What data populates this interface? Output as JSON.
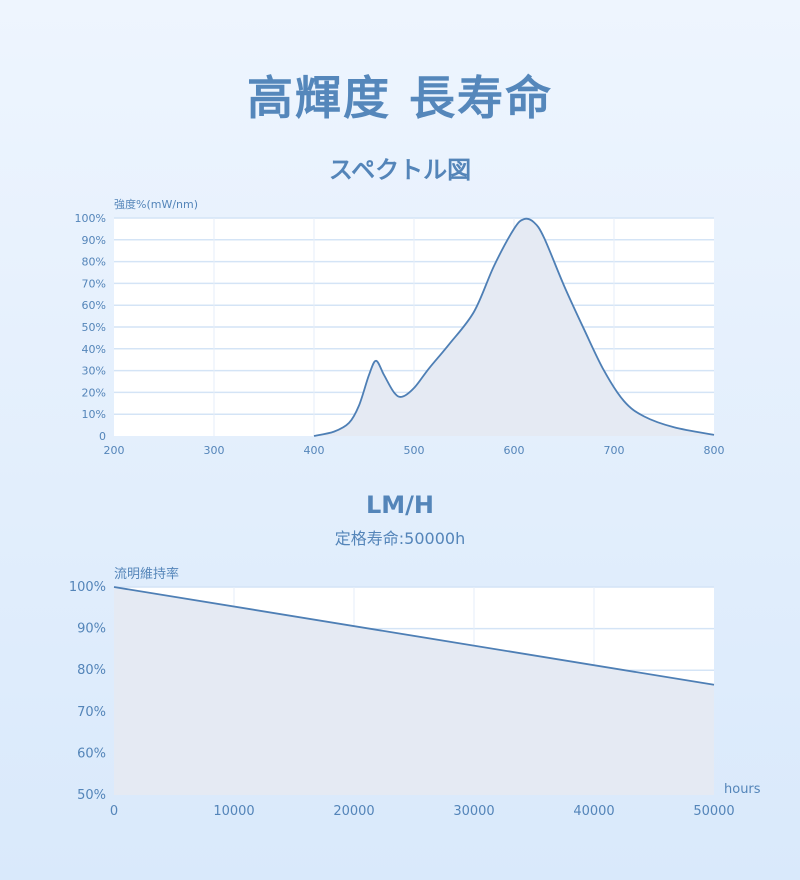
{
  "header": {
    "title": "高輝度 長寿命"
  },
  "chart_data": [
    {
      "type": "area",
      "title": "スペクトル図",
      "ylabel": "強度%(mW/nm)",
      "xlabel": "",
      "xlim": [
        200,
        800
      ],
      "ylim": [
        0,
        100
      ],
      "xticks": [
        "200",
        "300",
        "400",
        "500",
        "600",
        "700",
        "800"
      ],
      "yticks": [
        "0",
        "10%",
        "20%",
        "30%",
        "40%",
        "50%",
        "60%",
        "70%",
        "80%",
        "90%",
        "100%"
      ],
      "grid": true,
      "x": [
        400,
        420,
        435,
        445,
        455,
        462,
        470,
        480,
        488,
        500,
        515,
        535,
        560,
        580,
        600,
        610,
        620,
        630,
        650,
        670,
        690,
        710,
        730,
        760,
        800
      ],
      "y": [
        0,
        2,
        6,
        14,
        28,
        34.5,
        28,
        20,
        18,
        22,
        31,
        42,
        57,
        78,
        95,
        99.5,
        98,
        91,
        69,
        49,
        30,
        16,
        9,
        4,
        0.5
      ]
    },
    {
      "type": "area",
      "title": "LM/H",
      "subtitle": "定格寿命:50000h",
      "ylabel": "流明維持率",
      "xlabel": "hours",
      "xlim": [
        0,
        50000
      ],
      "ylim": [
        50,
        100
      ],
      "xticks": [
        "0",
        "10000",
        "20000",
        "30000",
        "40000",
        "50000"
      ],
      "yticks": [
        "50%",
        "60%",
        "70%",
        "80%",
        "90%",
        "100%"
      ],
      "grid": true,
      "x": [
        0,
        50000
      ],
      "y": [
        100,
        76.5
      ]
    }
  ],
  "colors": {
    "line": "#4e7fb5",
    "fill": "#e5eaf3",
    "grid": "#d4e4f6",
    "plot_bg": "#ffffff",
    "text": "#5485b9"
  }
}
